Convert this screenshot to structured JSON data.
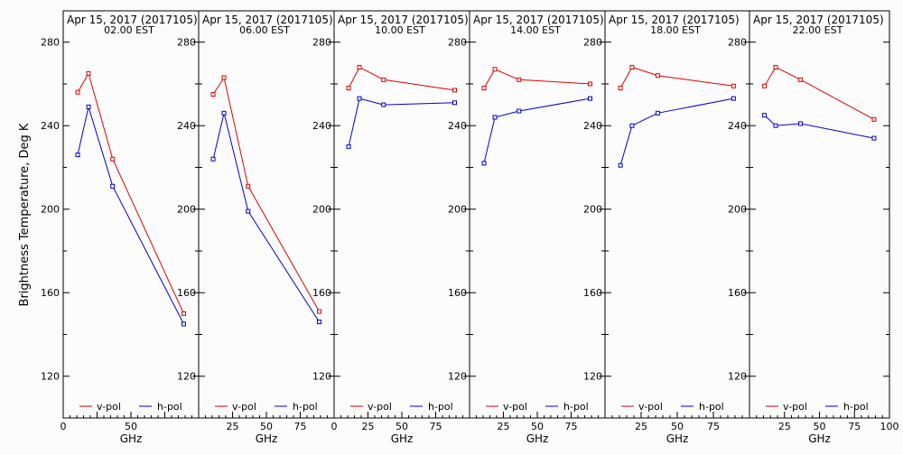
{
  "ylabel": "Brightness Temperature, Deg K",
  "colors": {
    "vpol": "#e00000",
    "hpol": "#0000d0",
    "axis": "#000000"
  },
  "chart_data": [
    {
      "type": "line",
      "title": "Apr 15, 2017 (2017105)",
      "subtitle": "02.00 EST",
      "xlabel": "GHz",
      "x": [
        10.7,
        18.7,
        36.5,
        89.0
      ],
      "series": [
        {
          "name": "v-pol",
          "values": [
            256,
            265,
            224,
            150
          ]
        },
        {
          "name": "h-pol",
          "values": [
            226,
            249,
            211,
            145
          ]
        }
      ],
      "xlim": [
        0,
        100
      ],
      "ylim": [
        100,
        295
      ],
      "xticks": [
        "0",
        "50"
      ],
      "xminor": [
        25,
        75
      ],
      "yticks": [
        120,
        160,
        200,
        240,
        280
      ],
      "ytick_side": "left"
    },
    {
      "type": "line",
      "title": "Apr 15, 2017 (2017105)",
      "subtitle": "06.00 EST",
      "xlabel": "GHz",
      "x": [
        10.7,
        18.7,
        36.5,
        89.0
      ],
      "series": [
        {
          "name": "v-pol",
          "values": [
            255,
            263,
            211,
            151
          ]
        },
        {
          "name": "h-pol",
          "values": [
            224,
            246,
            199,
            146
          ]
        }
      ],
      "xlim": [
        0,
        100
      ],
      "ylim": [
        100,
        295
      ],
      "xticks": [
        "25",
        "50",
        "75"
      ],
      "xminor": [
        0,
        100
      ],
      "yticks": [
        120,
        160,
        200,
        240,
        280
      ],
      "ytick_side": "right"
    },
    {
      "type": "line",
      "title": "Apr 15, 2017 (2017105)",
      "subtitle": "10.00 EST",
      "xlabel": "GHz",
      "x": [
        10.7,
        18.7,
        36.5,
        89.0
      ],
      "series": [
        {
          "name": "v-pol",
          "values": [
            258,
            268,
            262,
            257
          ]
        },
        {
          "name": "h-pol",
          "values": [
            230,
            253,
            250,
            251
          ]
        }
      ],
      "xlim": [
        0,
        100
      ],
      "ylim": [
        100,
        295
      ],
      "xticks": [
        "0",
        "25",
        "50",
        "75"
      ],
      "xminor": [
        100
      ],
      "yticks": [
        120,
        160,
        200,
        240,
        280
      ],
      "ytick_side": "right"
    },
    {
      "type": "line",
      "title": "Apr 15, 2017 (2017105)",
      "subtitle": "14.00 EST",
      "xlabel": "GHz",
      "x": [
        10.7,
        18.7,
        36.5,
        89.0
      ],
      "series": [
        {
          "name": "v-pol",
          "values": [
            258,
            267,
            262,
            260
          ]
        },
        {
          "name": "h-pol",
          "values": [
            222,
            244,
            247,
            253
          ]
        }
      ],
      "xlim": [
        0,
        100
      ],
      "ylim": [
        100,
        295
      ],
      "xticks": [
        "25",
        "50",
        "75"
      ],
      "xminor": [
        0,
        100
      ],
      "yticks": [
        120,
        160,
        200,
        240,
        280
      ],
      "ytick_side": "right"
    },
    {
      "type": "line",
      "title": "Apr 15, 2017 (2017105)",
      "subtitle": "18.00 EST",
      "xlabel": "GHz",
      "x": [
        10.7,
        18.7,
        36.5,
        89.0
      ],
      "series": [
        {
          "name": "v-pol",
          "values": [
            258,
            268,
            264,
            259
          ]
        },
        {
          "name": "h-pol",
          "values": [
            221,
            240,
            246,
            253
          ]
        }
      ],
      "xlim": [
        0,
        100
      ],
      "ylim": [
        100,
        295
      ],
      "xticks": [
        "25",
        "50",
        "75"
      ],
      "xminor": [
        0,
        100
      ],
      "yticks": [
        120,
        160,
        200,
        240,
        280
      ],
      "ytick_side": "right"
    },
    {
      "type": "line",
      "title": "Apr 15, 2017 (2017105)",
      "subtitle": "22.00 EST",
      "xlabel": "GHz",
      "x": [
        10.7,
        18.7,
        36.5,
        89.0
      ],
      "series": [
        {
          "name": "v-pol",
          "values": [
            259,
            268,
            262,
            243
          ]
        },
        {
          "name": "h-pol",
          "values": [
            245,
            240,
            241,
            234
          ]
        }
      ],
      "xlim": [
        0,
        100
      ],
      "ylim": [
        100,
        295
      ],
      "xticks": [
        "25",
        "50",
        "75",
        "100"
      ],
      "xminor": [
        0
      ],
      "yticks": [
        120,
        160,
        200,
        240,
        280
      ],
      "ytick_side": "right"
    }
  ]
}
